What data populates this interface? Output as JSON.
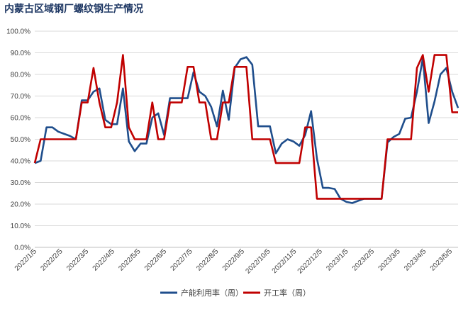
{
  "chart_data": {
    "type": "line",
    "title": "内蒙古区域钢厂螺纹钢生产情况",
    "ylim": [
      0,
      100
    ],
    "yticks": [
      "0.0%",
      "10.0%",
      "20.0%",
      "30.0%",
      "40.0%",
      "50.0%",
      "60.0%",
      "70.0%",
      "80.0%",
      "90.0%",
      "100.0%"
    ],
    "xticks": [
      "2022/1/5",
      "2022/2/5",
      "2022/3/5",
      "2022/4/5",
      "2022/5/5",
      "2022/6/5",
      "2022/7/5",
      "2022/8/5",
      "2022/9/5",
      "2022/10/5",
      "2022/11/5",
      "2022/12/5",
      "2023/1/5",
      "2023/2/5",
      "2023/3/5",
      "2023/4/5",
      "2023/5/5"
    ],
    "grid": true,
    "legend_position": "bottom",
    "colors": {
      "capacity": "#1f4e8c",
      "operating": "#c00000"
    },
    "series": [
      {
        "name": "产能利用率（周）",
        "color": "#1f4e8c",
        "values": [
          39,
          40,
          55.5,
          55.5,
          53.5,
          52.5,
          51.5,
          50,
          68,
          68,
          72,
          73.5,
          59,
          57,
          57,
          73.5,
          49,
          44.5,
          48,
          48,
          60,
          62,
          52,
          69,
          69,
          69,
          69,
          81,
          72,
          70,
          65,
          56,
          72.5,
          59,
          83,
          87,
          88,
          84.5,
          56,
          56,
          56,
          43.5,
          48,
          50,
          49,
          47,
          52,
          63,
          41,
          27.5,
          27.5,
          27,
          22.5,
          21,
          20.5,
          21.5,
          22.5,
          22.5,
          22.5,
          22.5,
          48.5,
          51,
          52.5,
          59.5,
          60,
          72,
          87.5,
          57.5,
          67.5,
          80,
          83,
          72,
          64.5
        ]
      },
      {
        "name": "开工率（周）",
        "color": "#c00000",
        "values": [
          39,
          50,
          50,
          50,
          50,
          50,
          50,
          50,
          67,
          67,
          83,
          67,
          55.5,
          55.5,
          67,
          89,
          55.5,
          50,
          50,
          50,
          67,
          50,
          50,
          67,
          67,
          67,
          83.5,
          83.5,
          67,
          67,
          50,
          50,
          67,
          67,
          83.5,
          83.5,
          83.5,
          50,
          50,
          50,
          50,
          39,
          39,
          39,
          39,
          39,
          55.5,
          55.5,
          22.5,
          22.5,
          22.5,
          22.5,
          22.5,
          22.5,
          22.5,
          22.5,
          22.5,
          22.5,
          22.5,
          22.5,
          50,
          50,
          50,
          50,
          50,
          83,
          89,
          72,
          89,
          89,
          89,
          62.5,
          62.5
        ]
      }
    ]
  }
}
